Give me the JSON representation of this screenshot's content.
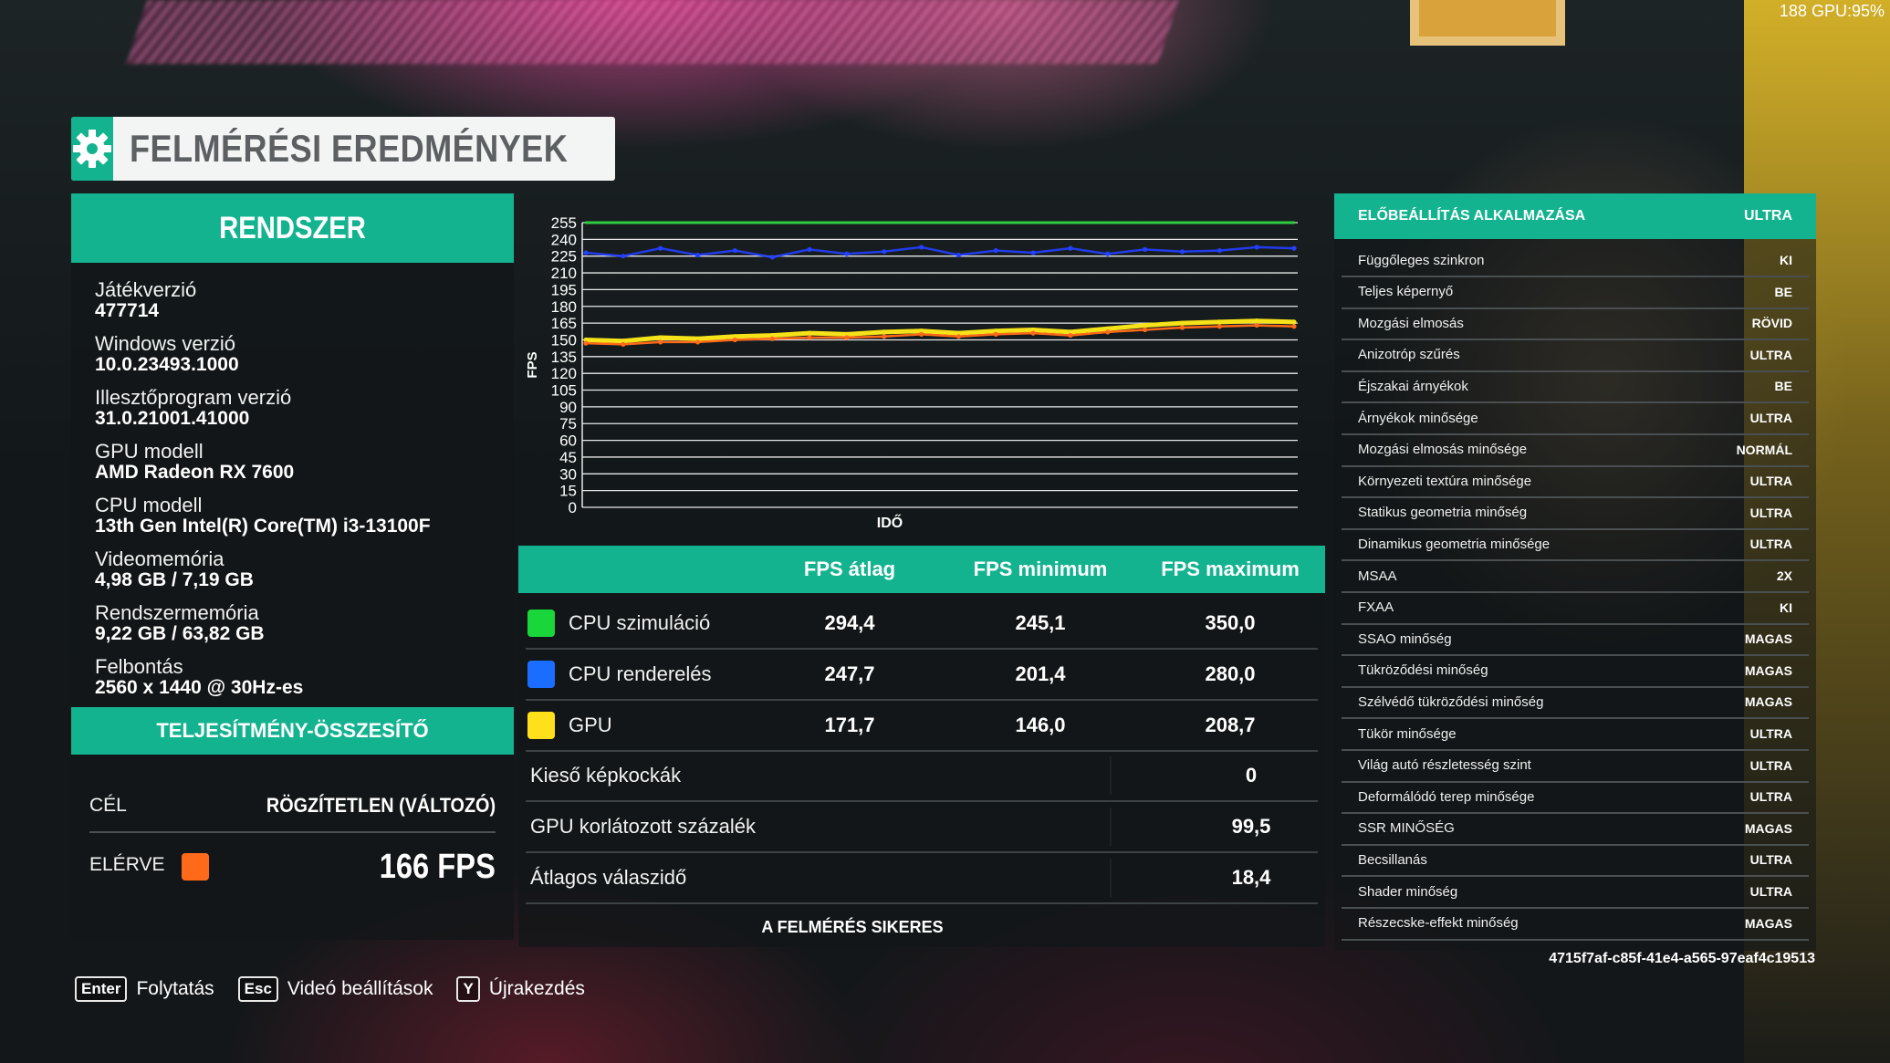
{
  "overlay": {
    "fps_gpu": "188 GPU:95%"
  },
  "title": "FELMÉRÉSI EREDMÉNYEK",
  "system": {
    "header": "RENDSZER",
    "items": [
      {
        "label": "Játékverzió",
        "value": "477714"
      },
      {
        "label": "Windows verzió",
        "value": "10.0.23493.1000"
      },
      {
        "label": "Illesztőprogram verzió",
        "value": "31.0.21001.41000"
      },
      {
        "label": "GPU modell",
        "value": "AMD Radeon RX 7600"
      },
      {
        "label": "CPU modell",
        "value": "13th Gen Intel(R) Core(TM) i3-13100F"
      },
      {
        "label": "Videomemória",
        "value": "4,98 GB / 7,19 GB"
      },
      {
        "label": "Rendszermemória",
        "value": "9,22 GB / 63,82 GB"
      },
      {
        "label": "Felbontás",
        "value": "2560 x 1440 @ 30Hz-es"
      }
    ]
  },
  "performance": {
    "header": "TELJESÍTMÉNY-ÖSSZESÍTŐ",
    "target_label": "CÉL",
    "target_value": "RÖGZÍTETLEN (VÁLTOZÓ)",
    "achieved_label": "ELÉRVE",
    "achieved_value": "166 FPS",
    "achieved_color": "#ff6a1a"
  },
  "chart_data": {
    "type": "line",
    "xlabel": "IDŐ",
    "ylabel": "FPS",
    "ylim": [
      0,
      255
    ],
    "yticks": [
      0,
      15,
      30,
      45,
      60,
      75,
      90,
      105,
      120,
      135,
      150,
      165,
      180,
      195,
      210,
      225,
      240,
      255
    ],
    "series": [
      {
        "color": "#2ecc40",
        "values": [
          255,
          255,
          255,
          255,
          255,
          255,
          255,
          255,
          255,
          255,
          255,
          255,
          255,
          255,
          255,
          255,
          255,
          255,
          255,
          255
        ]
      },
      {
        "color": "#2440ff",
        "values": [
          228,
          225,
          232,
          226,
          230,
          224,
          231,
          227,
          229,
          233,
          226,
          230,
          228,
          232,
          227,
          231,
          229,
          230,
          233,
          232
        ]
      },
      {
        "color": "#f5e218",
        "values": [
          150,
          149,
          152,
          151,
          153,
          154,
          156,
          155,
          157,
          158,
          156,
          158,
          159,
          157,
          160,
          163,
          165,
          166,
          167,
          166
        ]
      },
      {
        "color": "#ff6a1a",
        "values": [
          147,
          146,
          148,
          148,
          150,
          151,
          152,
          152,
          153,
          155,
          153,
          155,
          156,
          154,
          157,
          159,
          161,
          162,
          163,
          162
        ]
      }
    ]
  },
  "fps_table": {
    "headers": [
      "FPS átlag",
      "FPS minimum",
      "FPS maximum"
    ],
    "rows": [
      {
        "name": "CPU szimuláció",
        "color": "#19d63a",
        "avg": "294,4",
        "min": "245,1",
        "max": "350,0"
      },
      {
        "name": "CPU renderelés",
        "color": "#1a6dff",
        "avg": "247,7",
        "min": "201,4",
        "max": "280,0"
      },
      {
        "name": "GPU",
        "color": "#ffe01a",
        "avg": "171,7",
        "min": "146,0",
        "max": "208,7"
      }
    ],
    "stats": [
      {
        "name": "Kieső képkockák",
        "value": "0"
      },
      {
        "name": "GPU korlátozott százalék",
        "value": "99,5"
      },
      {
        "name": "Átlagos válaszidő",
        "value": "18,4"
      }
    ],
    "status": "A FELMÉRÉS SIKERES"
  },
  "settings": {
    "header_label": "ELŐBEÁLLÍTÁS ALKALMAZÁSA",
    "header_value": "ULTRA",
    "rows": [
      {
        "name": "Függőleges szinkron",
        "value": "KI"
      },
      {
        "name": "Teljes képernyő",
        "value": "BE"
      },
      {
        "name": "Mozgási elmosás",
        "value": "RÖVID"
      },
      {
        "name": "Anizotróp szűrés",
        "value": "ULTRA"
      },
      {
        "name": "Éjszakai árnyékok",
        "value": "BE"
      },
      {
        "name": "Árnyékok minősége",
        "value": "ULTRA"
      },
      {
        "name": "Mozgási elmosás minősége",
        "value": "NORMÁL"
      },
      {
        "name": "Környezeti textúra minősége",
        "value": "ULTRA"
      },
      {
        "name": "Statikus geometria minőség",
        "value": "ULTRA"
      },
      {
        "name": "Dinamikus geometria minősége",
        "value": "ULTRA"
      },
      {
        "name": "MSAA",
        "value": "2X"
      },
      {
        "name": "FXAA",
        "value": "KI"
      },
      {
        "name": "SSAO minőség",
        "value": "MAGAS"
      },
      {
        "name": "Tükröződési minőség",
        "value": "MAGAS"
      },
      {
        "name": "Szélvédő tükröződési minőség",
        "value": "MAGAS"
      },
      {
        "name": "Tükör minősége",
        "value": "ULTRA"
      },
      {
        "name": "Világ autó részletesség szint",
        "value": "ULTRA"
      },
      {
        "name": "Deformálódó terep minősége",
        "value": "ULTRA"
      },
      {
        "name": "SSR MINŐSÉG",
        "value": "MAGAS"
      },
      {
        "name": "Becsillanás",
        "value": "ULTRA"
      },
      {
        "name": "Shader minőség",
        "value": "ULTRA"
      },
      {
        "name": "Részecske-effekt minőség",
        "value": "MAGAS"
      }
    ],
    "session_id": "4715f7af-c85f-41e4-a565-97eaf4c19513"
  },
  "hints": [
    {
      "key": "Enter",
      "label": "Folytatás"
    },
    {
      "key": "Esc",
      "label": "Videó beállítások"
    },
    {
      "key": "Y",
      "label": "Újrakezdés"
    }
  ]
}
